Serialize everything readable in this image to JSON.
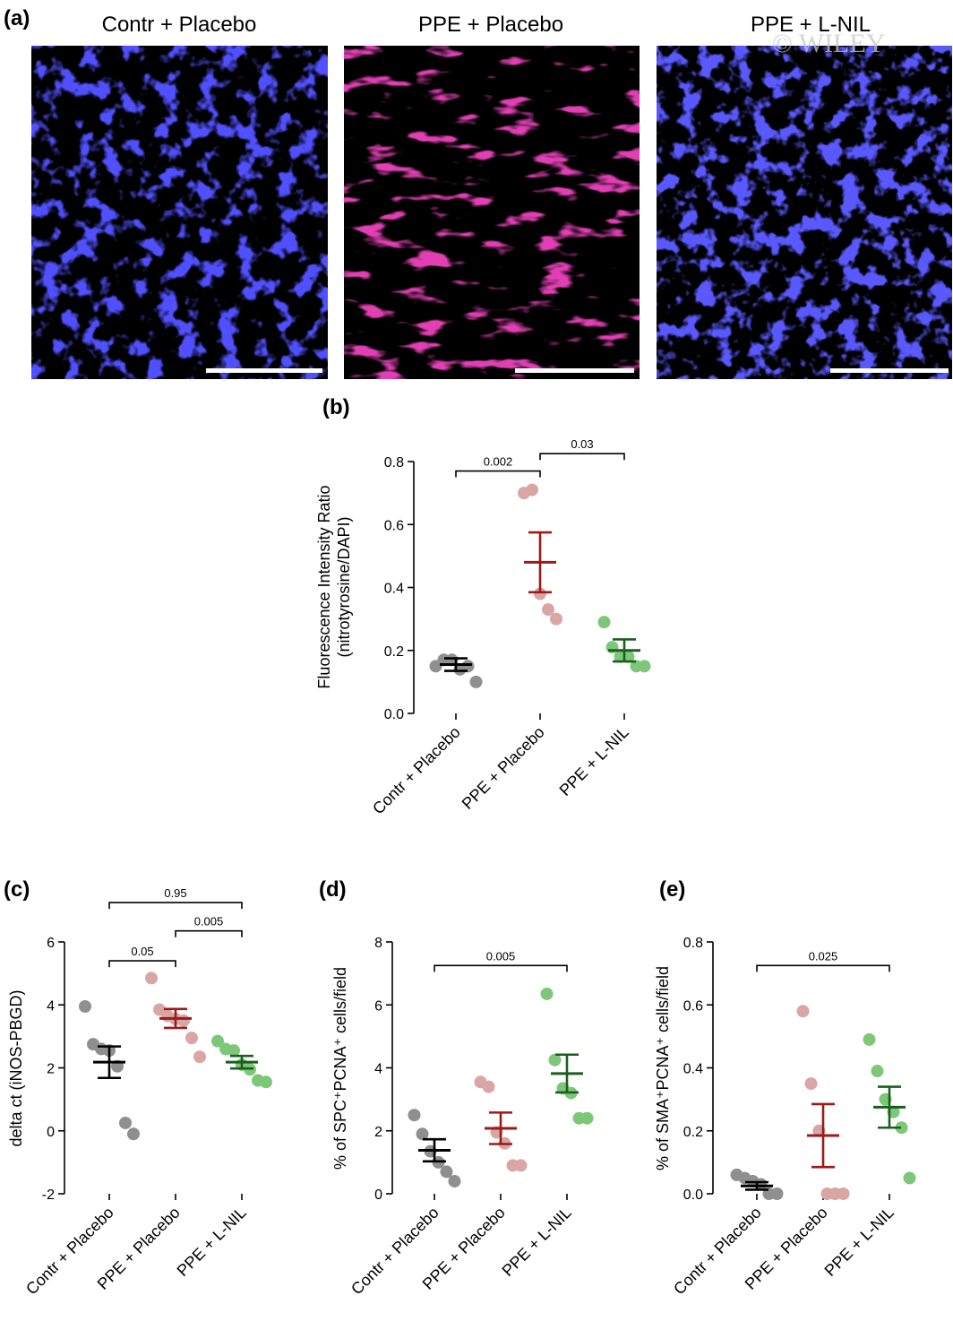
{
  "watermark": "© WILEY",
  "panel_a": {
    "letter": "(a)",
    "images": [
      {
        "title": "Contr + Placebo",
        "stain": "blue"
      },
      {
        "title": "PPE + Placebo",
        "stain": "red"
      },
      {
        "title": "PPE + L-NIL",
        "stain": "blue"
      }
    ]
  },
  "colors": {
    "contr_mean": "#000000",
    "contr_dots": "#8f8f8f",
    "ppe_mean": "#9b1b18",
    "ppe_dots": "#d9a5a5",
    "lnil_mean": "#1b5e20",
    "lnil_dots": "#7dc878"
  },
  "chart_data": [
    {
      "letter": "(b)",
      "type": "scatter",
      "categories": [
        "Contr + Placebo",
        "PPE + Placebo",
        "PPE + L-NIL"
      ],
      "ylabel_lines": [
        "Fluorescence Intensity Ratio",
        "(nitrotyrosine/DAPI)"
      ],
      "ylim": [
        0,
        0.8
      ],
      "yticks": [
        0,
        0.2,
        0.4,
        0.6,
        0.8
      ],
      "ytick_labels": [
        "0.0",
        "0.2",
        "0.4",
        "0.6",
        "0.8"
      ],
      "series": [
        {
          "points": [
            0.15,
            0.17,
            0.17,
            0.14,
            0.15,
            0.1
          ],
          "mean": 0.155,
          "sem": 0.02
        },
        {
          "points": [
            0.7,
            0.71,
            0.38,
            0.33,
            0.3
          ],
          "mean": 0.48,
          "sem": 0.095
        },
        {
          "points": [
            0.29,
            0.21,
            0.18,
            0.18,
            0.15,
            0.15
          ],
          "mean": 0.2,
          "sem": 0.035
        }
      ],
      "brackets": [
        {
          "from": 0,
          "to": 1,
          "y": 0.77,
          "label": "0.002"
        },
        {
          "from": 1,
          "to": 2,
          "y": 0.825,
          "label": "0.03"
        }
      ]
    },
    {
      "letter": "(c)",
      "type": "scatter",
      "categories": [
        "Contr + Placebo",
        "PPE + Placebo",
        "PPE + L-NIL"
      ],
      "ylabel_lines": [
        "delta ct (iNOS-PBGD)"
      ],
      "ylim": [
        -2,
        6
      ],
      "yticks": [
        -2,
        0,
        2,
        4,
        6
      ],
      "ytick_labels": [
        "-2",
        "0",
        "2",
        "4",
        "6"
      ],
      "series": [
        {
          "points": [
            3.95,
            2.75,
            2.6,
            2.55,
            2.05,
            0.25,
            -0.1
          ],
          "mean": 2.18,
          "sem": 0.5
        },
        {
          "points": [
            4.85,
            3.85,
            3.65,
            3.55,
            3.5,
            2.95,
            2.35
          ],
          "mean": 3.57,
          "sem": 0.3
        },
        {
          "points": [
            2.85,
            2.6,
            2.55,
            2.1,
            1.95,
            1.6,
            1.55
          ],
          "mean": 2.18,
          "sem": 0.2
        }
      ],
      "brackets": [
        {
          "from": 0,
          "to": 1,
          "y": 5.4,
          "label": "0.05"
        },
        {
          "from": 1,
          "to": 2,
          "y": 6.35,
          "label": "0.005"
        },
        {
          "from": 0,
          "to": 2,
          "y": 7.25,
          "label": "0.95"
        }
      ]
    },
    {
      "letter": "(d)",
      "type": "scatter",
      "categories": [
        "Contr + Placebo",
        "PPE + Placebo",
        "PPE + L-NIL"
      ],
      "ylabel_lines": [
        "% of SPC⁺PCNA⁺ cells/field"
      ],
      "ylim": [
        0,
        8
      ],
      "yticks": [
        0,
        2,
        4,
        6,
        8
      ],
      "ytick_labels": [
        "0",
        "2",
        "4",
        "6",
        "8"
      ],
      "series": [
        {
          "points": [
            2.5,
            1.9,
            1.35,
            1.0,
            0.7,
            0.4
          ],
          "mean": 1.38,
          "sem": 0.35
        },
        {
          "points": [
            3.55,
            3.4,
            1.95,
            1.6,
            0.9,
            0.9
          ],
          "mean": 2.08,
          "sem": 0.5
        },
        {
          "points": [
            6.35,
            4.25,
            3.35,
            3.2,
            2.4,
            2.4
          ],
          "mean": 3.82,
          "sem": 0.6
        }
      ],
      "brackets": [
        {
          "from": 0,
          "to": 2,
          "y": 7.25,
          "label": "0.005"
        }
      ]
    },
    {
      "letter": "(e)",
      "type": "scatter",
      "categories": [
        "Contr + Placebo",
        "PPE + Placebo",
        "PPE + L-NIL"
      ],
      "ylabel_lines": [
        "% of SMA⁺PCNA⁺ cells/field"
      ],
      "ylim": [
        0,
        0.8
      ],
      "yticks": [
        0,
        0.2,
        0.4,
        0.6,
        0.8
      ],
      "ytick_labels": [
        "0.0",
        "0.2",
        "0.4",
        "0.6",
        "0.8"
      ],
      "series": [
        {
          "points": [
            0.06,
            0.05,
            0.04,
            0.03,
            0.0,
            0.0
          ],
          "mean": 0.025,
          "sem": 0.012
        },
        {
          "points": [
            0.58,
            0.35,
            0.2,
            0.0,
            0.0,
            0.0
          ],
          "mean": 0.185,
          "sem": 0.1
        },
        {
          "points": [
            0.49,
            0.39,
            0.3,
            0.26,
            0.21,
            0.05
          ],
          "mean": 0.275,
          "sem": 0.065
        }
      ],
      "brackets": [
        {
          "from": 0,
          "to": 2,
          "y": 0.725,
          "label": "0.025"
        }
      ]
    }
  ]
}
